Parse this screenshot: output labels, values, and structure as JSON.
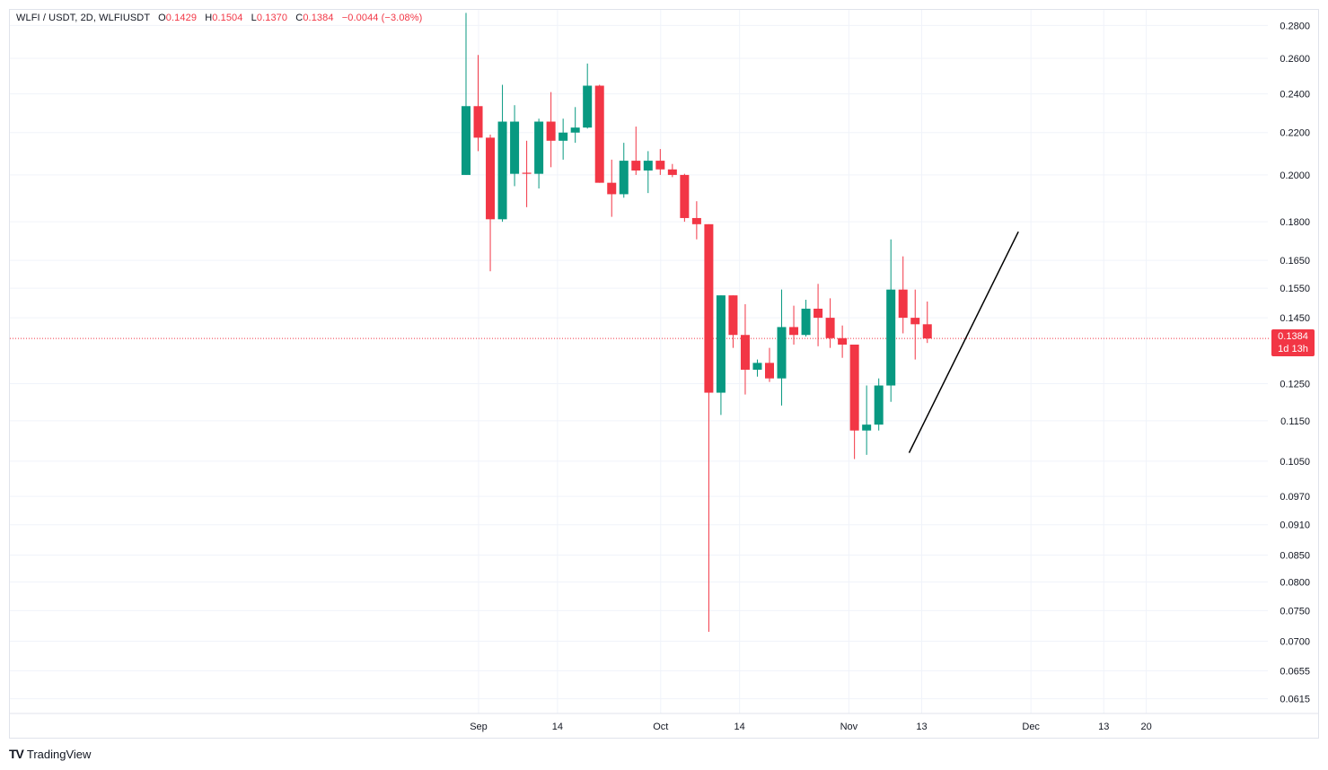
{
  "legend": {
    "symbol": "WLFI / USDT, 2D, WLFIUSDT",
    "o_label": "O",
    "o_value": "0.1429",
    "h_label": "H",
    "h_value": "0.1504",
    "l_label": "L",
    "l_value": "0.1370",
    "c_label": "C",
    "c_value": "0.1384",
    "change": "−0.0044 (−3.08%)"
  },
  "price_tag": {
    "price": "0.1384",
    "countdown": "1d 13h"
  },
  "brand": "TradingView",
  "colors": {
    "up": "#089981",
    "down": "#f23645",
    "grid": "#f0f3fa",
    "text": "#131722",
    "trendline": "#000000"
  },
  "chart_data": {
    "type": "candlestick",
    "log_scale": true,
    "grid": true,
    "ylim": [
      0.0595,
      0.29
    ],
    "x_tick_labels": [
      "Sep",
      "14",
      "Oct",
      "14",
      "Nov",
      "13",
      "Dec",
      "13",
      "20"
    ],
    "y_tick_labels": [
      "0.2800",
      "0.2600",
      "0.2400",
      "0.2200",
      "0.2000",
      "0.1800",
      "0.1650",
      "0.1550",
      "0.1450",
      "0.1250",
      "0.1150",
      "0.1050",
      "0.0970",
      "0.0910",
      "0.0850",
      "0.0800",
      "0.0750",
      "0.0700",
      "0.0655",
      "0.0615"
    ],
    "last_price": 0.1384,
    "candles": [
      {
        "date": "2025-09-01",
        "open": 0.2,
        "high": 0.288,
        "low": 0.2,
        "close": 0.2335
      },
      {
        "date": "2025-09-03",
        "open": 0.2335,
        "high": 0.262,
        "low": 0.211,
        "close": 0.2175
      },
      {
        "date": "2025-09-05",
        "open": 0.2175,
        "high": 0.219,
        "low": 0.161,
        "close": 0.181
      },
      {
        "date": "2025-09-07",
        "open": 0.181,
        "high": 0.245,
        "low": 0.18,
        "close": 0.2255
      },
      {
        "date": "2025-09-09",
        "open": 0.2005,
        "high": 0.234,
        "low": 0.195,
        "close": 0.2255
      },
      {
        "date": "2025-09-11",
        "open": 0.201,
        "high": 0.216,
        "low": 0.186,
        "close": 0.2005
      },
      {
        "date": "2025-09-13",
        "open": 0.2005,
        "high": 0.227,
        "low": 0.194,
        "close": 0.2255
      },
      {
        "date": "2025-09-15",
        "open": 0.2255,
        "high": 0.241,
        "low": 0.2035,
        "close": 0.216
      },
      {
        "date": "2025-09-17",
        "open": 0.216,
        "high": 0.227,
        "low": 0.207,
        "close": 0.22
      },
      {
        "date": "2025-09-19",
        "open": 0.22,
        "high": 0.233,
        "low": 0.215,
        "close": 0.2225
      },
      {
        "date": "2025-09-21",
        "open": 0.2225,
        "high": 0.257,
        "low": 0.222,
        "close": 0.2445
      },
      {
        "date": "2025-09-23",
        "open": 0.2445,
        "high": 0.245,
        "low": 0.1965,
        "close": 0.1965
      },
      {
        "date": "2025-09-25",
        "open": 0.1965,
        "high": 0.207,
        "low": 0.182,
        "close": 0.1915
      },
      {
        "date": "2025-09-27",
        "open": 0.1915,
        "high": 0.215,
        "low": 0.19,
        "close": 0.2065
      },
      {
        "date": "2025-09-29",
        "open": 0.2065,
        "high": 0.223,
        "low": 0.2,
        "close": 0.202
      },
      {
        "date": "2025-10-01",
        "open": 0.202,
        "high": 0.211,
        "low": 0.192,
        "close": 0.2065
      },
      {
        "date": "2025-10-03",
        "open": 0.2065,
        "high": 0.212,
        "low": 0.2,
        "close": 0.2025
      },
      {
        "date": "2025-10-05",
        "open": 0.2025,
        "high": 0.205,
        "low": 0.199,
        "close": 0.2
      },
      {
        "date": "2025-10-07",
        "open": 0.2,
        "high": 0.2005,
        "low": 0.18,
        "close": 0.1815
      },
      {
        "date": "2025-10-09",
        "open": 0.1815,
        "high": 0.1885,
        "low": 0.173,
        "close": 0.179
      },
      {
        "date": "2025-10-11",
        "open": 0.179,
        "high": 0.179,
        "low": 0.0715,
        "close": 0.1225
      },
      {
        "date": "2025-10-13",
        "open": 0.1225,
        "high": 0.1525,
        "low": 0.1165,
        "close": 0.1525
      },
      {
        "date": "2025-10-15",
        "open": 0.1525,
        "high": 0.1525,
        "low": 0.1355,
        "close": 0.1395
      },
      {
        "date": "2025-10-17",
        "open": 0.1395,
        "high": 0.1495,
        "low": 0.122,
        "close": 0.129
      },
      {
        "date": "2025-10-19",
        "open": 0.129,
        "high": 0.132,
        "low": 0.127,
        "close": 0.131
      },
      {
        "date": "2025-10-21",
        "open": 0.131,
        "high": 0.1355,
        "low": 0.1255,
        "close": 0.1265
      },
      {
        "date": "2025-10-23",
        "open": 0.1265,
        "high": 0.1545,
        "low": 0.119,
        "close": 0.142
      },
      {
        "date": "2025-10-25",
        "open": 0.142,
        "high": 0.149,
        "low": 0.1365,
        "close": 0.1395
      },
      {
        "date": "2025-10-27",
        "open": 0.1395,
        "high": 0.151,
        "low": 0.139,
        "close": 0.148
      },
      {
        "date": "2025-10-29",
        "open": 0.148,
        "high": 0.1565,
        "low": 0.136,
        "close": 0.145
      },
      {
        "date": "2025-10-31",
        "open": 0.145,
        "high": 0.1515,
        "low": 0.1355,
        "close": 0.1385
      },
      {
        "date": "2025-11-02",
        "open": 0.1385,
        "high": 0.1425,
        "low": 0.1325,
        "close": 0.1365
      },
      {
        "date": "2025-11-04",
        "open": 0.1365,
        "high": 0.1365,
        "low": 0.1055,
        "close": 0.1125
      },
      {
        "date": "2025-11-06",
        "open": 0.1125,
        "high": 0.1245,
        "low": 0.1065,
        "close": 0.114
      },
      {
        "date": "2025-11-08",
        "open": 0.114,
        "high": 0.1265,
        "low": 0.1125,
        "close": 0.1245
      },
      {
        "date": "2025-11-10",
        "open": 0.1245,
        "high": 0.173,
        "low": 0.12,
        "close": 0.1545
      },
      {
        "date": "2025-11-12",
        "open": 0.1545,
        "high": 0.1665,
        "low": 0.14,
        "close": 0.145
      },
      {
        "date": "2025-11-14",
        "open": 0.145,
        "high": 0.1545,
        "low": 0.132,
        "close": 0.1429
      },
      {
        "date": "2025-11-16",
        "open": 0.1429,
        "high": 0.1504,
        "low": 0.137,
        "close": 0.1384
      }
    ],
    "trendline": {
      "start": {
        "date": "2025-11-13",
        "price": 0.107
      },
      "end": {
        "date": "2025-12-01",
        "price": 0.176
      }
    }
  }
}
